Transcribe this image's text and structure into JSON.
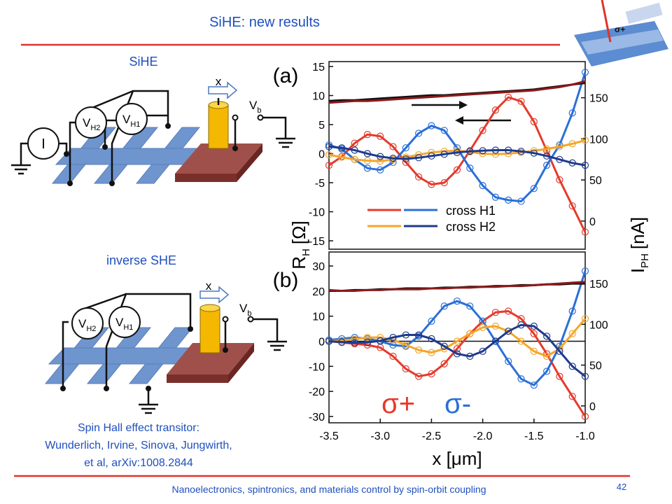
{
  "header": {
    "title": "SiHE: new results"
  },
  "corner_image": {
    "label": "σ+"
  },
  "diagrams": [
    {
      "title": "SiHE",
      "arrow": "x",
      "bias": {
        "main": "V",
        "sub": "b"
      },
      "probes": [
        {
          "main": "V",
          "sub": "H2"
        },
        {
          "main": "V",
          "sub": "H1"
        }
      ],
      "source": "I"
    },
    {
      "title": "inverse SHE",
      "arrow": "x",
      "bias": {
        "main": "V",
        "sub": "b"
      },
      "probes": [
        {
          "main": "V",
          "sub": "H2"
        },
        {
          "main": "V",
          "sub": "H1"
        }
      ]
    }
  ],
  "citation": [
    "Spin Hall effect transitor:",
    "Wunderlich, Irvine, Sinova, Jungwirth,",
    "et al, arXiv:1008.2844"
  ],
  "footer": {
    "text": "Nanoelectronics, spintronics, and materials control by spin-orbit coupling",
    "page": 42
  },
  "chart_data": [
    {
      "type": "line",
      "label": "(a)",
      "ylabel": {
        "main": "R",
        "sub": "H",
        "unit": "[Ω]"
      },
      "y2label": {
        "main": "I",
        "sub": "PH",
        "unit": "[nA]"
      },
      "x": [
        -3.5,
        -3.375,
        -3.25,
        -3.125,
        -3.0,
        -2.875,
        -2.75,
        -2.625,
        -2.5,
        -2.375,
        -2.25,
        -2.125,
        -2.0,
        -1.875,
        -1.75,
        -1.625,
        -1.5,
        -1.375,
        -1.25,
        -1.125,
        -1.0
      ],
      "xlim": [
        -3.5,
        -1.0
      ],
      "ylim": [
        -15,
        15
      ],
      "yticks": [
        -15,
        -10,
        -5,
        0,
        5,
        10,
        15
      ],
      "y2lim": [
        -24,
        188
      ],
      "y2ticks": [
        0,
        50,
        100,
        150
      ],
      "series": [
        {
          "name": "cross H1",
          "color": "#e53a2c",
          "markers": true,
          "values": [
            -2.0,
            -0.5,
            1.8,
            3.3,
            3.0,
            1.2,
            -1.5,
            -4.0,
            -5.3,
            -5.0,
            -2.8,
            0.5,
            4.0,
            7.5,
            9.7,
            9.0,
            5.5,
            0.5,
            -4.5,
            -9.0,
            -13.5
          ]
        },
        {
          "name": "cross H1",
          "color": "#2a6fd6",
          "markers": true,
          "values": [
            1.5,
            0.8,
            -1.0,
            -2.5,
            -2.8,
            -1.5,
            1.0,
            3.5,
            4.8,
            4.0,
            1.0,
            -2.5,
            -5.5,
            -7.5,
            -8.0,
            -8.2,
            -6.0,
            -2.0,
            1.5,
            7.0,
            14.0
          ]
        },
        {
          "name": "cross H2",
          "color": "#f4a62a",
          "markers": true,
          "values": [
            -0.2,
            -0.6,
            -1.0,
            -1.2,
            -1.3,
            -1.0,
            -0.6,
            -0.2,
            0.2,
            0.4,
            0.5,
            0.3,
            0.0,
            -0.1,
            0.0,
            0.2,
            0.5,
            0.8,
            1.2,
            1.7,
            2.3
          ]
        },
        {
          "name": "cross H2",
          "color": "#1f3a8c",
          "markers": true,
          "values": [
            1.2,
            1.0,
            0.6,
            0.0,
            -0.5,
            -0.8,
            -0.9,
            -0.7,
            -0.4,
            -0.1,
            0.2,
            0.4,
            0.5,
            0.6,
            0.6,
            0.4,
            0.1,
            -0.4,
            -1.0,
            -1.6,
            -2.0
          ]
        },
        {
          "axis": "y2",
          "color": "#111111",
          "values": [
            146,
            147,
            147,
            148,
            149,
            150,
            151,
            152,
            153,
            153,
            154,
            155,
            156,
            157,
            158,
            159,
            160,
            162,
            164,
            166,
            168
          ]
        },
        {
          "axis": "y2",
          "color": "#8b1a1a",
          "values": [
            144,
            145,
            146,
            146,
            147,
            148,
            149,
            150,
            151,
            152,
            153,
            154,
            155,
            156,
            157,
            158,
            159,
            161,
            163,
            166,
            170
          ]
        }
      ]
    },
    {
      "type": "line",
      "label": "(b)",
      "xlabel": "x [μm]",
      "zero_line": true,
      "x": [
        -3.5,
        -3.375,
        -3.25,
        -3.125,
        -3.0,
        -2.875,
        -2.75,
        -2.625,
        -2.5,
        -2.375,
        -2.25,
        -2.125,
        -2.0,
        -1.875,
        -1.75,
        -1.625,
        -1.5,
        -1.375,
        -1.25,
        -1.125,
        -1.0
      ],
      "xlim": [
        -3.5,
        -1.0
      ],
      "xticks": [
        -3.5,
        {
          "value": -3,
          "label": "-3.0"
        },
        -2.5,
        {
          "value": -2,
          "label": "-2.0"
        },
        -1.5,
        {
          "value": -1,
          "label": "-1.0"
        }
      ],
      "ylim": [
        -30,
        30
      ],
      "yticks": [
        -30,
        -20,
        -10,
        0,
        10,
        20,
        30
      ],
      "y2lim": [
        -13,
        171.5
      ],
      "y2ticks": [
        0,
        50,
        100,
        150
      ],
      "annotations": [
        {
          "text": "σ+",
          "color": "#e53a2c"
        },
        {
          "text": "σ-",
          "color": "#2a6fd6"
        }
      ],
      "series": [
        {
          "color": "#e53a2c",
          "markers": true,
          "values": [
            0,
            -0.5,
            -1.0,
            -1.5,
            -2.5,
            -6,
            -11,
            -14,
            -13,
            -9,
            -3,
            3,
            8,
            11.5,
            12,
            9,
            3,
            -5,
            -14,
            -22,
            -30
          ]
        },
        {
          "color": "#2a6fd6",
          "markers": true,
          "values": [
            0.5,
            1.0,
            1.5,
            1.0,
            0.0,
            -1.5,
            -2.0,
            2.0,
            8,
            14,
            16,
            14,
            8,
            0,
            -8,
            -15,
            -17.5,
            -12,
            -2,
            12,
            28
          ]
        },
        {
          "color": "#f4a62a",
          "markers": true,
          "values": [
            0,
            0.3,
            0.8,
            1.5,
            1.5,
            0.5,
            -1.5,
            -3.5,
            -4.5,
            -3.0,
            0,
            3,
            5.5,
            6,
            4,
            0,
            -4,
            -6,
            -3,
            3,
            9
          ]
        },
        {
          "color": "#1f3a8c",
          "markers": true,
          "values": [
            0,
            -0.3,
            -0.6,
            -0.5,
            0.2,
            1.5,
            2.5,
            2.5,
            1,
            -2,
            -5,
            -6,
            -4,
            0,
            4,
            6.5,
            6,
            2,
            -4,
            -10,
            -14
          ]
        },
        {
          "axis": "y2",
          "color": "#111111",
          "values": [
            141,
            141,
            142,
            142,
            143,
            143,
            144,
            144,
            144,
            145,
            145,
            146,
            146,
            147,
            147,
            148,
            148,
            149,
            149,
            150,
            150
          ]
        },
        {
          "axis": "y2",
          "color": "#8b1a1a",
          "values": [
            142,
            141,
            141,
            142,
            142,
            143,
            143,
            143,
            144,
            144,
            145,
            145,
            146,
            146,
            147,
            147,
            148,
            149,
            150,
            151,
            152
          ]
        }
      ]
    }
  ]
}
